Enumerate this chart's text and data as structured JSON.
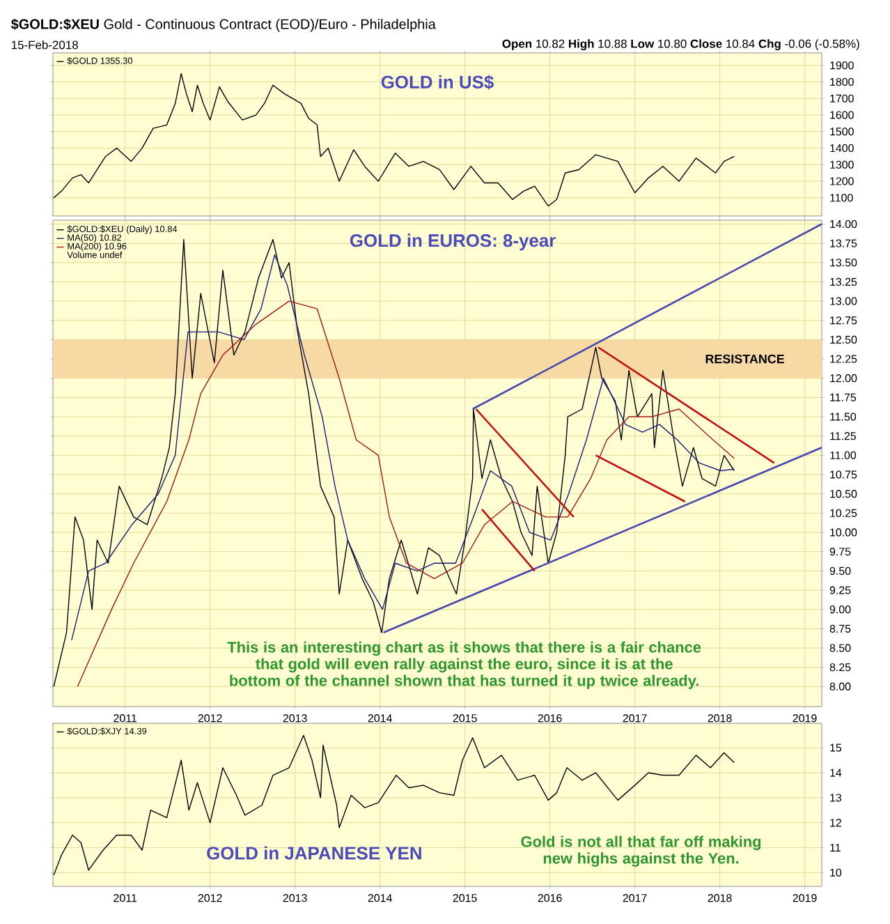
{
  "chart_data": [
    {
      "type": "line",
      "title": "**$GOLD:$XEU** Gold - Continuous Contract (EOD)/Euro - Philadelphia",
      "subtitle": "15-Feb-2018",
      "annotations": [
        "GOLD in US$",
        "**Open** 10.82 **High** 10.88 **Low** 10.80 **Close** 10.84 **Chg** -0.06 (-0.58%)"
      ],
      "xlim": [
        2010.15,
        2019.2
      ],
      "xticks": [
        {
          "value": 2011,
          "label": null
        },
        {
          "value": 2012,
          "label": null
        },
        {
          "value": 2013,
          "label": null
        },
        {
          "value": 2014,
          "label": null
        },
        {
          "value": 2015,
          "label": null
        },
        {
          "value": 2016,
          "label": null
        },
        {
          "value": 2017,
          "label": null
        },
        {
          "value": 2018,
          "label": null
        },
        {
          "value": 2019,
          "label": null
        }
      ],
      "ylim": [
        990,
        1975
      ],
      "yticks": [
        1100,
        1200,
        1300,
        1400,
        1500,
        1600,
        1700,
        1800,
        1900
      ],
      "grid": true,
      "legend": "top left",
      "tick_labels": "y",
      "series": [
        {
          "name": "$GOLD 1355.30",
          "color": "#000000",
          "x": [
            2010.16,
            2010.25,
            2010.38,
            2010.48,
            2010.57,
            2010.77,
            2010.9,
            2011.07,
            2011.2,
            2011.33,
            2011.49,
            2011.59,
            2011.66,
            2011.72,
            2011.79,
            2011.85,
            2011.92,
            2012.0,
            2012.11,
            2012.21,
            2012.38,
            2012.54,
            2012.64,
            2012.74,
            2012.87,
            2013.07,
            2013.16,
            2013.26,
            2013.3,
            2013.39,
            2013.52,
            2013.69,
            2013.82,
            2013.98,
            2014.18,
            2014.34,
            2014.51,
            2014.7,
            2014.87,
            2015.07,
            2015.23,
            2015.39,
            2015.56,
            2015.69,
            2015.82,
            2015.98,
            2016.08,
            2016.18,
            2016.34,
            2016.54,
            2016.8,
            2017.0,
            2017.16,
            2017.33,
            2017.52,
            2017.72,
            2017.95,
            2018.05,
            2018.17
          ],
          "values": [
            1100,
            1140,
            1220,
            1240,
            1190,
            1350,
            1400,
            1320,
            1400,
            1520,
            1540,
            1670,
            1850,
            1730,
            1620,
            1780,
            1670,
            1570,
            1770,
            1680,
            1570,
            1600,
            1670,
            1780,
            1730,
            1670,
            1580,
            1540,
            1350,
            1400,
            1200,
            1390,
            1290,
            1200,
            1370,
            1290,
            1320,
            1270,
            1150,
            1290,
            1190,
            1190,
            1090,
            1140,
            1170,
            1050,
            1090,
            1250,
            1270,
            1360,
            1320,
            1130,
            1220,
            1290,
            1200,
            1340,
            1250,
            1320,
            1350
          ]
        }
      ]
    },
    {
      "type": "line",
      "annotations": [
        "Volume undef",
        "GOLD in EUROS: 8-year",
        "This is an interesting chart as it shows that there is a fair chance that gold will even rally against the euro, since it is at the bottom of the channel shown that has turned it up twice already."
      ],
      "xlim": [
        2010.15,
        2019.2
      ],
      "xticks": [
        2011,
        2012,
        2013,
        2014,
        2015,
        2016,
        2017,
        2018,
        2019
      ],
      "ylim": [
        7.74,
        14.05
      ],
      "yticks": [
        {
          "value": 8,
          "label": "8.00"
        },
        {
          "value": 8.25,
          "label": "8.25"
        },
        {
          "value": 8.5,
          "label": "8.50"
        },
        {
          "value": 8.75,
          "label": "8.75"
        },
        {
          "value": 9,
          "label": "9.00"
        },
        {
          "value": 9.25,
          "label": "9.25"
        },
        {
          "value": 9.5,
          "label": "9.50"
        },
        {
          "value": 9.75,
          "label": "9.75"
        },
        {
          "value": 10,
          "label": "10.00"
        },
        {
          "value": 10.25,
          "label": "10.25"
        },
        {
          "value": 10.5,
          "label": "10.50"
        },
        {
          "value": 10.75,
          "label": "10.75"
        },
        {
          "value": 11,
          "label": "11.00"
        },
        {
          "value": 11.25,
          "label": "11.25"
        },
        {
          "value": 11.5,
          "label": "11.50"
        },
        {
          "value": 11.75,
          "label": "11.75"
        },
        {
          "value": 12,
          "label": "12.00"
        },
        {
          "value": 12.25,
          "label": "12.25"
        },
        {
          "value": 12.5,
          "label": "12.50"
        },
        {
          "value": 12.75,
          "label": "12.75"
        },
        {
          "value": 13,
          "label": "13.00"
        },
        {
          "value": 13.25,
          "label": "13.25"
        },
        {
          "value": 13.5,
          "label": "13.50"
        },
        {
          "value": 13.75,
          "label": "13.75"
        },
        {
          "value": 14,
          "label": "14.00"
        }
      ],
      "grid": true,
      "legend": "top left",
      "bands": [
        {
          "axis": "y",
          "from": 12.0,
          "to": 12.5,
          "label": "RESISTANCE",
          "color": "#f6d9a3"
        }
      ],
      "series": [
        {
          "name": "$GOLD:$XEU (Daily) 10.84",
          "color": "#000000",
          "x": [
            2010.16,
            2010.31,
            2010.41,
            2010.51,
            2010.61,
            2010.67,
            2010.8,
            2010.93,
            2011.1,
            2011.26,
            2011.43,
            2011.52,
            2011.59,
            2011.69,
            2011.79,
            2011.89,
            2012.05,
            2012.15,
            2012.28,
            2012.41,
            2012.57,
            2012.74,
            2012.84,
            2012.93,
            2013.03,
            2013.16,
            2013.3,
            2013.46,
            2013.52,
            2013.62,
            2013.79,
            2013.92,
            2014.02,
            2014.11,
            2014.25,
            2014.44,
            2014.57,
            2014.7,
            2014.9,
            2015.0,
            2015.09,
            2015.1,
            2015.2,
            2015.3,
            2015.43,
            2015.56,
            2015.66,
            2015.79,
            2015.85,
            2015.98,
            2016.08,
            2016.18,
            2016.21,
            2016.38,
            2016.54,
            2016.61,
            2016.77,
            2016.84,
            2016.93,
            2017.03,
            2017.2,
            2017.23,
            2017.33,
            2017.46,
            2017.56,
            2017.69,
            2017.79,
            2017.95,
            2018.05,
            2018.17
          ],
          "values": [
            8.0,
            8.7,
            10.2,
            9.9,
            9.0,
            9.9,
            9.6,
            10.6,
            10.2,
            10.1,
            10.7,
            11.1,
            11.8,
            13.8,
            12.0,
            13.1,
            12.2,
            13.4,
            12.3,
            12.6,
            13.3,
            13.8,
            13.3,
            13.5,
            12.6,
            11.8,
            10.6,
            10.2,
            9.2,
            9.9,
            9.4,
            9.1,
            8.7,
            9.4,
            9.9,
            9.2,
            9.8,
            9.7,
            9.2,
            9.9,
            10.7,
            11.6,
            10.7,
            11.2,
            10.7,
            10.4,
            10.0,
            9.7,
            10.6,
            9.6,
            10.0,
            11.0,
            11.5,
            11.6,
            12.4,
            12.0,
            11.7,
            11.2,
            12.1,
            11.5,
            11.8,
            11.1,
            12.1,
            11.2,
            10.6,
            11.1,
            10.7,
            10.6,
            11.0,
            10.8
          ]
        },
        {
          "name": "MA(50) 10.82",
          "color": "#1c1c78",
          "x": [
            2010.37,
            2010.57,
            2010.77,
            2011.08,
            2011.39,
            2011.59,
            2011.74,
            2011.89,
            2012.1,
            2012.4,
            2012.6,
            2012.76,
            2012.91,
            2013.11,
            2013.32,
            2013.47,
            2013.62,
            2013.82,
            2014.03,
            2014.18,
            2014.44,
            2014.64,
            2014.89,
            2015.1,
            2015.3,
            2015.55,
            2015.76,
            2016.01,
            2016.22,
            2016.43,
            2016.63,
            2016.89,
            2017.09,
            2017.29,
            2017.5,
            2017.76,
            2018.01,
            2018.17
          ],
          "values": [
            8.6,
            9.5,
            9.6,
            10.1,
            10.5,
            11.0,
            12.6,
            12.6,
            12.6,
            12.5,
            12.9,
            13.6,
            13.2,
            12.3,
            11.5,
            10.6,
            9.9,
            9.4,
            9.0,
            9.6,
            9.5,
            9.6,
            9.6,
            10.2,
            10.8,
            10.6,
            10.0,
            9.9,
            10.5,
            11.2,
            12.0,
            11.4,
            11.3,
            11.4,
            11.2,
            10.9,
            10.8,
            10.82
          ]
        },
        {
          "name": "MA(200) 10.96",
          "color": "#a01818",
          "x": [
            2010.44,
            2010.84,
            2011.1,
            2011.49,
            2011.75,
            2011.89,
            2012.15,
            2012.54,
            2012.93,
            2013.26,
            2013.52,
            2013.72,
            2013.98,
            2014.11,
            2014.31,
            2014.64,
            2014.97,
            2015.23,
            2015.56,
            2015.95,
            2016.21,
            2016.48,
            2016.67,
            2016.93,
            2017.2,
            2017.52,
            2017.92,
            2018.17
          ],
          "values": [
            8.0,
            9.0,
            9.6,
            10.4,
            11.2,
            11.8,
            12.3,
            12.7,
            13.0,
            12.9,
            12.0,
            11.2,
            11.0,
            10.2,
            9.6,
            9.4,
            9.6,
            10.1,
            10.4,
            10.2,
            10.2,
            10.7,
            11.2,
            11.5,
            11.5,
            11.6,
            11.2,
            10.96
          ]
        },
        {
          "color": "#4848b0",
          "x": [
            2015.09,
            2019.2
          ],
          "values": [
            11.6,
            14.0
          ]
        },
        {
          "color": "#4848b0",
          "x": [
            2014.04,
            2019.2
          ],
          "values": [
            8.7,
            11.1
          ]
        },
        {
          "color": "#c01010",
          "x": [
            2015.13,
            2016.28
          ],
          "values": [
            11.6,
            10.2
          ]
        },
        {
          "color": "#c01010",
          "x": [
            2015.2,
            2015.82
          ],
          "values": [
            10.3,
            9.5
          ]
        },
        {
          "color": "#c01010",
          "x": [
            2016.54,
            2017.59
          ],
          "values": [
            11.0,
            10.4
          ]
        },
        {
          "color": "#c01010",
          "x": [
            2016.57,
            2018.64
          ],
          "values": [
            12.4,
            10.9
          ]
        }
      ]
    },
    {
      "type": "line",
      "annotations": [
        "GOLD in JAPANESE YEN",
        "Gold is not all that far off making new highs against the Yen."
      ],
      "xlim": [
        2010.15,
        2019.2
      ],
      "xticks": [
        2011,
        2012,
        2013,
        2014,
        2015,
        2016,
        2017,
        2018,
        2019
      ],
      "ylim": [
        9.45,
        15.98
      ],
      "yticks": [
        10,
        11,
        12,
        13,
        14,
        15
      ],
      "grid": true,
      "legend": "top left",
      "series": [
        {
          "name": "$GOLD:$XJY 14.39",
          "color": "#000000",
          "x": [
            2010.16,
            2010.25,
            2010.38,
            2010.48,
            2010.57,
            2010.74,
            2010.9,
            2011.07,
            2011.2,
            2011.3,
            2011.49,
            2011.66,
            2011.75,
            2011.85,
            2012.0,
            2012.15,
            2012.31,
            2012.41,
            2012.61,
            2012.74,
            2012.93,
            2013.1,
            2013.2,
            2013.3,
            2013.33,
            2013.49,
            2013.52,
            2013.66,
            2013.82,
            2013.98,
            2014.19,
            2014.34,
            2014.51,
            2014.7,
            2014.87,
            2014.97,
            2015.09,
            2015.23,
            2015.43,
            2015.62,
            2015.82,
            2015.98,
            2016.08,
            2016.2,
            2016.38,
            2016.54,
            2016.8,
            2017.0,
            2017.16,
            2017.33,
            2017.52,
            2017.72,
            2017.89,
            2018.05,
            2018.17
          ],
          "values": [
            9.9,
            10.7,
            11.5,
            11.2,
            10.1,
            10.9,
            11.5,
            11.5,
            10.9,
            12.5,
            12.2,
            14.5,
            12.5,
            13.6,
            12.0,
            14.2,
            13.1,
            12.3,
            12.7,
            13.9,
            14.2,
            15.5,
            14.5,
            13.0,
            15.1,
            12.7,
            11.8,
            13.1,
            12.6,
            12.8,
            13.9,
            13.4,
            13.5,
            13.2,
            13.1,
            14.5,
            15.4,
            14.2,
            14.7,
            13.7,
            13.9,
            12.9,
            13.2,
            14.2,
            13.7,
            14.0,
            12.9,
            13.5,
            14.0,
            13.9,
            13.9,
            14.7,
            14.2,
            14.8,
            14.4
          ]
        }
      ]
    }
  ]
}
